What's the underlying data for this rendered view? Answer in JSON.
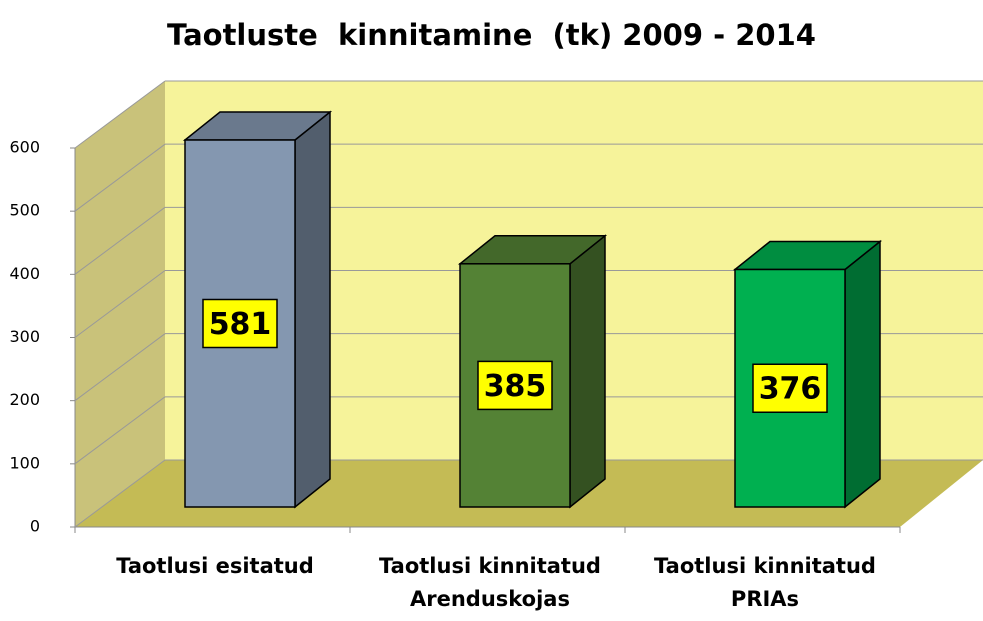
{
  "chart_data": {
    "type": "bar3d",
    "title": "Taotluste  kinnitamine  (tk) 2009 - 2014",
    "categories": [
      "Taotlusi esitatud",
      "Taotlusi kinnitatud Arenduskojas",
      "Taotlusi kinnitatud PRIAs"
    ],
    "values": [
      581,
      385,
      376
    ],
    "colors": [
      "#8497b0",
      "#548235",
      "#00b050"
    ],
    "ylim": [
      0,
      600
    ],
    "yticks": [
      0,
      100,
      200,
      300,
      400,
      500,
      600
    ],
    "grid": true
  }
}
